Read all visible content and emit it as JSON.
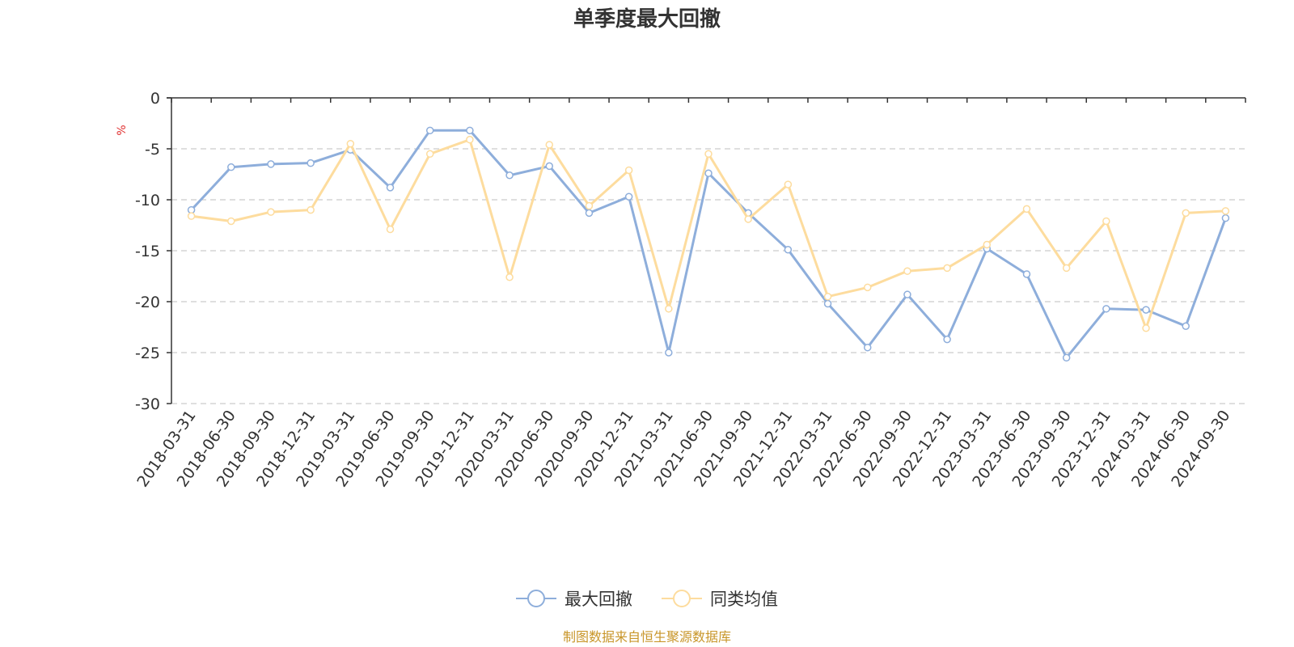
{
  "chart_data": {
    "type": "line",
    "title": "单季度最大回撤",
    "ylabel": "%",
    "xlabel": "",
    "ylim": [
      -30,
      0
    ],
    "yticks": [
      0,
      -5,
      -10,
      -15,
      -20,
      -25,
      -30
    ],
    "categories": [
      "2018-03-31",
      "2018-06-30",
      "2018-09-30",
      "2018-12-31",
      "2019-03-31",
      "2019-06-30",
      "2019-09-30",
      "2019-12-31",
      "2020-03-31",
      "2020-06-30",
      "2020-09-30",
      "2020-12-31",
      "2021-03-31",
      "2021-06-30",
      "2021-09-30",
      "2021-12-31",
      "2022-03-31",
      "2022-06-30",
      "2022-09-30",
      "2022-12-31",
      "2023-03-31",
      "2023-06-30",
      "2023-09-30",
      "2023-12-31",
      "2024-03-31",
      "2024-06-30",
      "2024-09-30"
    ],
    "series": [
      {
        "name": "最大回撤",
        "color": "#8eaedb",
        "values": [
          -11.0,
          -6.8,
          -6.5,
          -6.4,
          -5.1,
          -8.8,
          -3.2,
          -3.2,
          -7.6,
          -6.7,
          -11.3,
          -9.7,
          -25.0,
          -7.4,
          -11.3,
          -14.9,
          -20.2,
          -24.5,
          -19.3,
          -23.7,
          -14.8,
          -17.3,
          -25.5,
          -20.7,
          -20.8,
          -22.4,
          -11.8
        ]
      },
      {
        "name": "同类均值",
        "color": "#fddc9e",
        "values": [
          -11.6,
          -12.1,
          -11.2,
          -11.0,
          -4.5,
          -12.9,
          -5.5,
          -4.1,
          -17.6,
          -4.6,
          -10.6,
          -7.1,
          -20.7,
          -5.5,
          -11.9,
          -8.5,
          -19.5,
          -18.6,
          -17.0,
          -16.7,
          -14.4,
          -10.9,
          -16.7,
          -12.1,
          -22.6,
          -11.3,
          -11.1
        ]
      }
    ],
    "grid": true,
    "legend_position": "bottom-center"
  },
  "source_note": "制图数据来自恒生聚源数据库",
  "colors": {
    "series_1": "#8eaedb",
    "series_2": "#fddc9e",
    "unit_label": "#e03030",
    "source_note": "#c8962a",
    "axis": "#333333",
    "grid": "#cccccc"
  }
}
